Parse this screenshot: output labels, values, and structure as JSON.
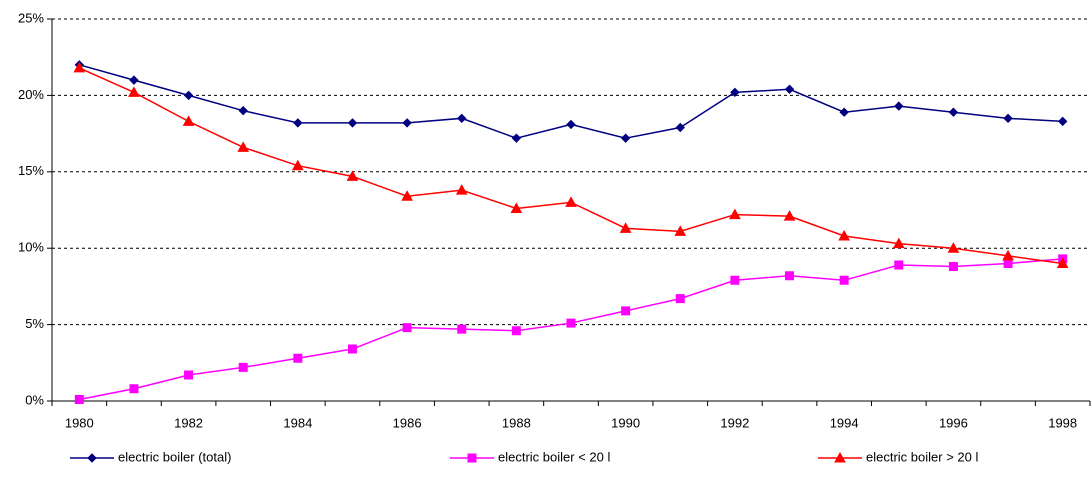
{
  "chart_data": {
    "type": "line",
    "categories": [
      "1980",
      null,
      "1982",
      null,
      "1984",
      null,
      "1986",
      null,
      "1988",
      null,
      "1990",
      null,
      "1992",
      null,
      "1994",
      null,
      "1996",
      null,
      "1998"
    ],
    "series": [
      {
        "name": "electric boiler (total)",
        "color": "#000080",
        "marker": "diamond",
        "values": [
          22,
          21,
          20,
          19,
          18.2,
          18.2,
          18.2,
          18.5,
          17.2,
          18.1,
          17.2,
          17.9,
          20.2,
          20.4,
          18.9,
          19.3,
          18.9,
          18.5,
          18.3
        ]
      },
      {
        "name": "electric boiler < 20 l",
        "color": "#ff00ff",
        "marker": "square",
        "values": [
          0.1,
          0.8,
          1.7,
          2.2,
          2.8,
          3.4,
          4.8,
          4.7,
          4.6,
          5.1,
          5.9,
          6.7,
          7.9,
          8.2,
          7.9,
          8.9,
          8.8,
          9.0,
          9.3
        ]
      },
      {
        "name": "electric boiler > 20 l",
        "color": "#ff0000",
        "marker": "triangle",
        "values": [
          21.8,
          20.2,
          18.3,
          16.6,
          15.4,
          14.7,
          13.4,
          13.8,
          12.6,
          13.0,
          11.3,
          11.1,
          12.2,
          12.1,
          10.8,
          10.3,
          10.0,
          9.5,
          9.0
        ]
      }
    ],
    "ylim": [
      0,
      25
    ],
    "yticks": [
      {
        "value": 0,
        "label": "0%"
      },
      {
        "value": 5,
        "label": "5%"
      },
      {
        "value": 10,
        "label": "10%"
      },
      {
        "value": 15,
        "label": "15%"
      },
      {
        "value": 20,
        "label": "20%"
      },
      {
        "value": 25,
        "label": "25%"
      }
    ],
    "grid": true,
    "legend": "bottom"
  }
}
